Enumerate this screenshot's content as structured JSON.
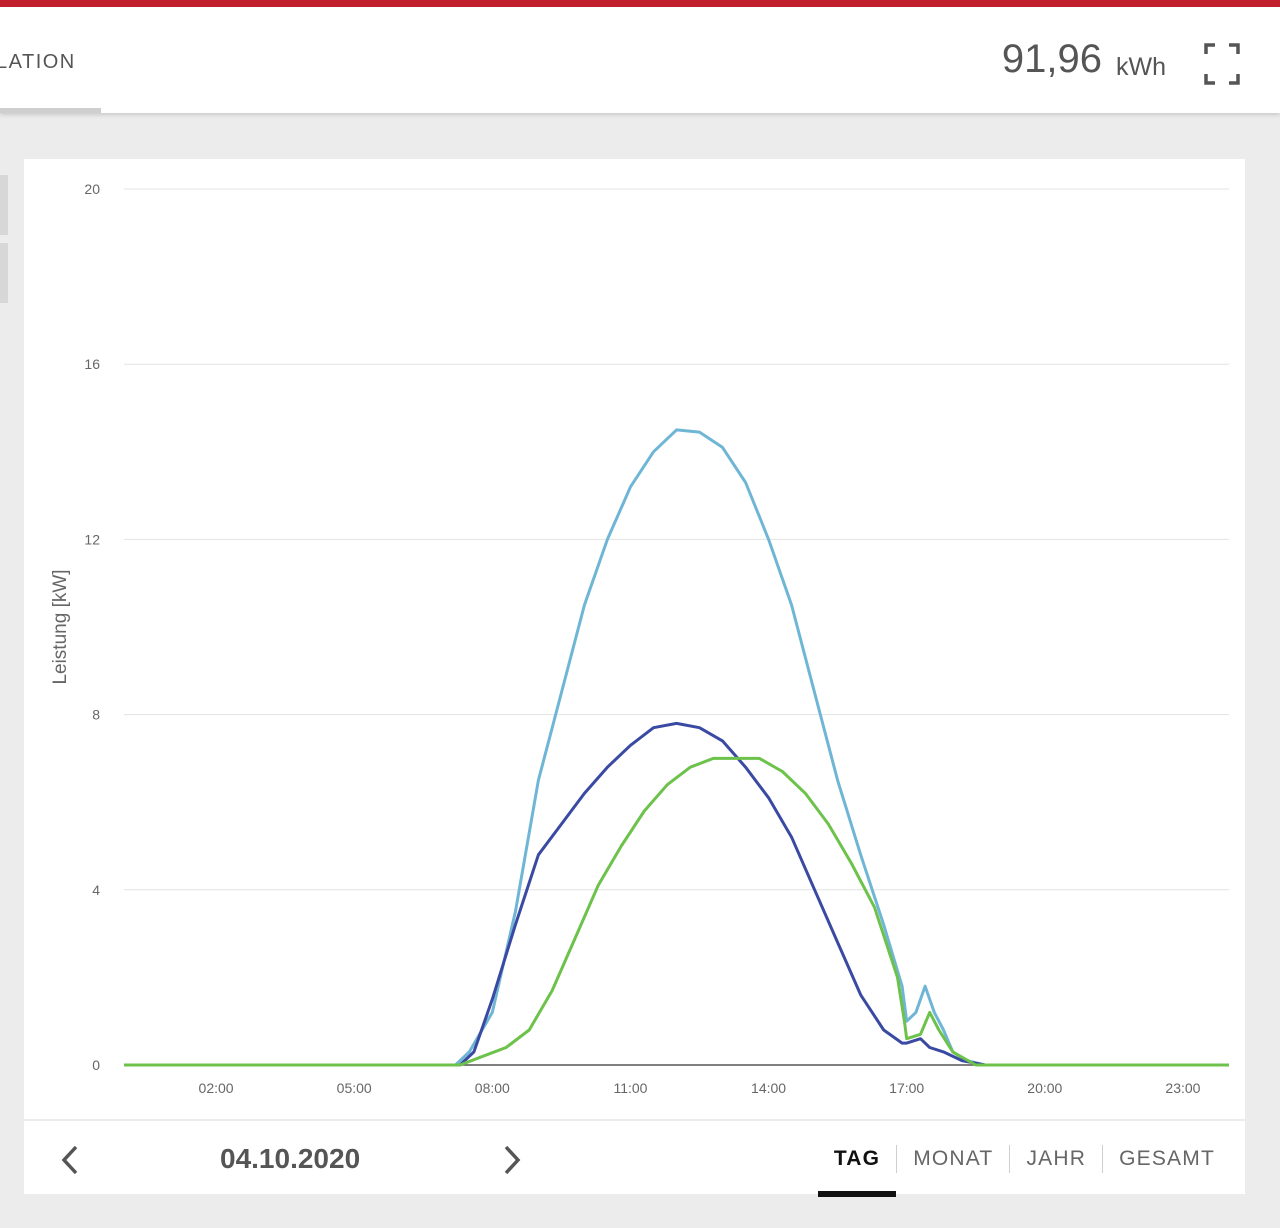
{
  "header": {
    "tab_label": "LATION",
    "energy_value": "91,96",
    "energy_unit": "kWh"
  },
  "icons": {
    "fullscreen": "fullscreen-icon",
    "prev": "chevron-left-icon",
    "next": "chevron-right-icon"
  },
  "colors": {
    "accent": "#c21f2e",
    "series_light_blue": "#6fb6d6",
    "series_dark_blue": "#3a4aa3",
    "series_green": "#6cc24a"
  },
  "footer": {
    "date": "04.10.2020",
    "periods": [
      "TAG",
      "MONAT",
      "JAHR",
      "GESAMT"
    ],
    "active_period": "TAG"
  },
  "chart_data": {
    "type": "line",
    "ylabel": "Leistung [kW]",
    "ylim": [
      0,
      20
    ],
    "yticks": [
      "0",
      "4",
      "8",
      "12",
      "16",
      "20"
    ],
    "xticks": [
      "02:00",
      "05:00",
      "08:00",
      "11:00",
      "14:00",
      "17:00",
      "20:00",
      "23:00"
    ],
    "xlim_hours": [
      0,
      24
    ],
    "grid": true,
    "series": [
      {
        "color": "#6fb6d6",
        "x": [
          0,
          7.2,
          7.5,
          8.0,
          8.5,
          9.0,
          9.5,
          10.0,
          10.5,
          11.0,
          11.5,
          12.0,
          12.5,
          13.0,
          13.5,
          14.0,
          14.5,
          15.0,
          15.5,
          16.0,
          16.5,
          16.9,
          17.0,
          17.2,
          17.4,
          17.6,
          17.8,
          18.0,
          18.3,
          18.7,
          24
        ],
        "y": [
          0,
          0,
          0.3,
          1.2,
          3.5,
          6.5,
          8.5,
          10.5,
          12.0,
          13.2,
          14.0,
          14.5,
          14.45,
          14.1,
          13.3,
          12.0,
          10.5,
          8.5,
          6.5,
          4.8,
          3.2,
          1.8,
          1.0,
          1.2,
          1.8,
          1.2,
          0.8,
          0.3,
          0.1,
          0,
          0
        ]
      },
      {
        "color": "#3a4aa3",
        "x": [
          0,
          7.3,
          7.6,
          8.0,
          8.5,
          9.0,
          9.5,
          10.0,
          10.5,
          11.0,
          11.5,
          12.0,
          12.5,
          13.0,
          13.5,
          14.0,
          14.5,
          15.0,
          15.5,
          16.0,
          16.5,
          16.9,
          17.0,
          17.3,
          17.5,
          17.8,
          18.2,
          18.7,
          24
        ],
        "y": [
          0,
          0,
          0.3,
          1.5,
          3.2,
          4.8,
          5.5,
          6.2,
          6.8,
          7.3,
          7.7,
          7.8,
          7.7,
          7.4,
          6.8,
          6.1,
          5.2,
          4.0,
          2.8,
          1.6,
          0.8,
          0.5,
          0.5,
          0.6,
          0.4,
          0.3,
          0.1,
          0,
          0
        ]
      },
      {
        "color": "#6cc24a",
        "x": [
          0,
          7.3,
          7.8,
          8.3,
          8.8,
          9.3,
          9.8,
          10.3,
          10.8,
          11.3,
          11.8,
          12.3,
          12.8,
          13.3,
          13.8,
          14.3,
          14.8,
          15.3,
          15.8,
          16.3,
          16.8,
          16.95,
          17.0,
          17.3,
          17.5,
          17.7,
          18.0,
          18.5,
          24
        ],
        "y": [
          0,
          0,
          0.2,
          0.4,
          0.8,
          1.7,
          2.9,
          4.1,
          5.0,
          5.8,
          6.4,
          6.8,
          7.0,
          7.0,
          7.0,
          6.7,
          6.2,
          5.5,
          4.6,
          3.6,
          2.0,
          1.0,
          0.6,
          0.7,
          1.2,
          0.8,
          0.3,
          0,
          0
        ]
      }
    ]
  }
}
